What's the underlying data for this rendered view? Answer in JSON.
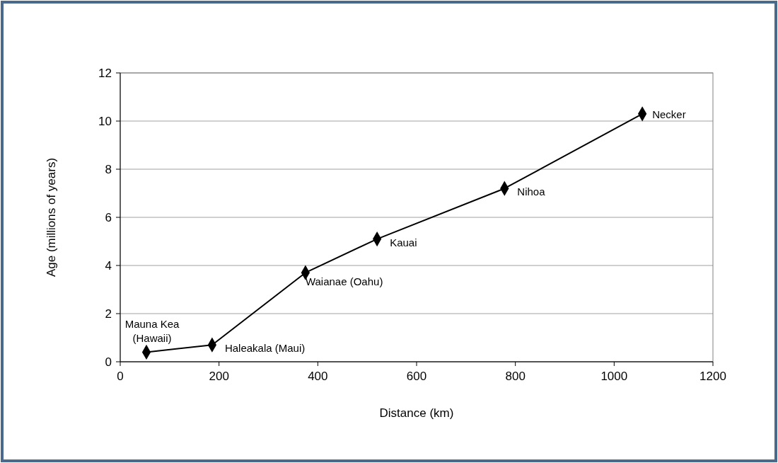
{
  "chart_data": {
    "type": "line",
    "xlabel": "Distance (km)",
    "ylabel": "Age (millions of years)",
    "x": [
      53,
      186,
      375,
      520,
      778,
      1057
    ],
    "series": [
      {
        "color": "#000000",
        "values": [
          0.4,
          0.7,
          3.7,
          5.1,
          7.2,
          10.3
        ]
      }
    ],
    "xlim": [
      0,
      1200
    ],
    "xticks": [
      0,
      200,
      400,
      600,
      800,
      1000,
      1200
    ],
    "ylim": [
      0,
      12
    ],
    "yticks": [
      0,
      2,
      4,
      6,
      8,
      10,
      12
    ],
    "grid": "y",
    "marker": "diamond",
    "line_style": "solid",
    "annotations": [
      {
        "text": "Mauna Kea\n(Hawaii)",
        "x": 53,
        "y": 0.4
      },
      {
        "text": "Haleakala (Maui)",
        "x": 186,
        "y": 0.7
      },
      {
        "text": "Waianae (Oahu)",
        "x": 375,
        "y": 3.7
      },
      {
        "text": "Kauai",
        "x": 520,
        "y": 5.1
      },
      {
        "text": "Nihoa",
        "x": 778,
        "y": 7.2
      },
      {
        "text": "Necker",
        "x": 1057,
        "y": 10.3
      }
    ]
  }
}
